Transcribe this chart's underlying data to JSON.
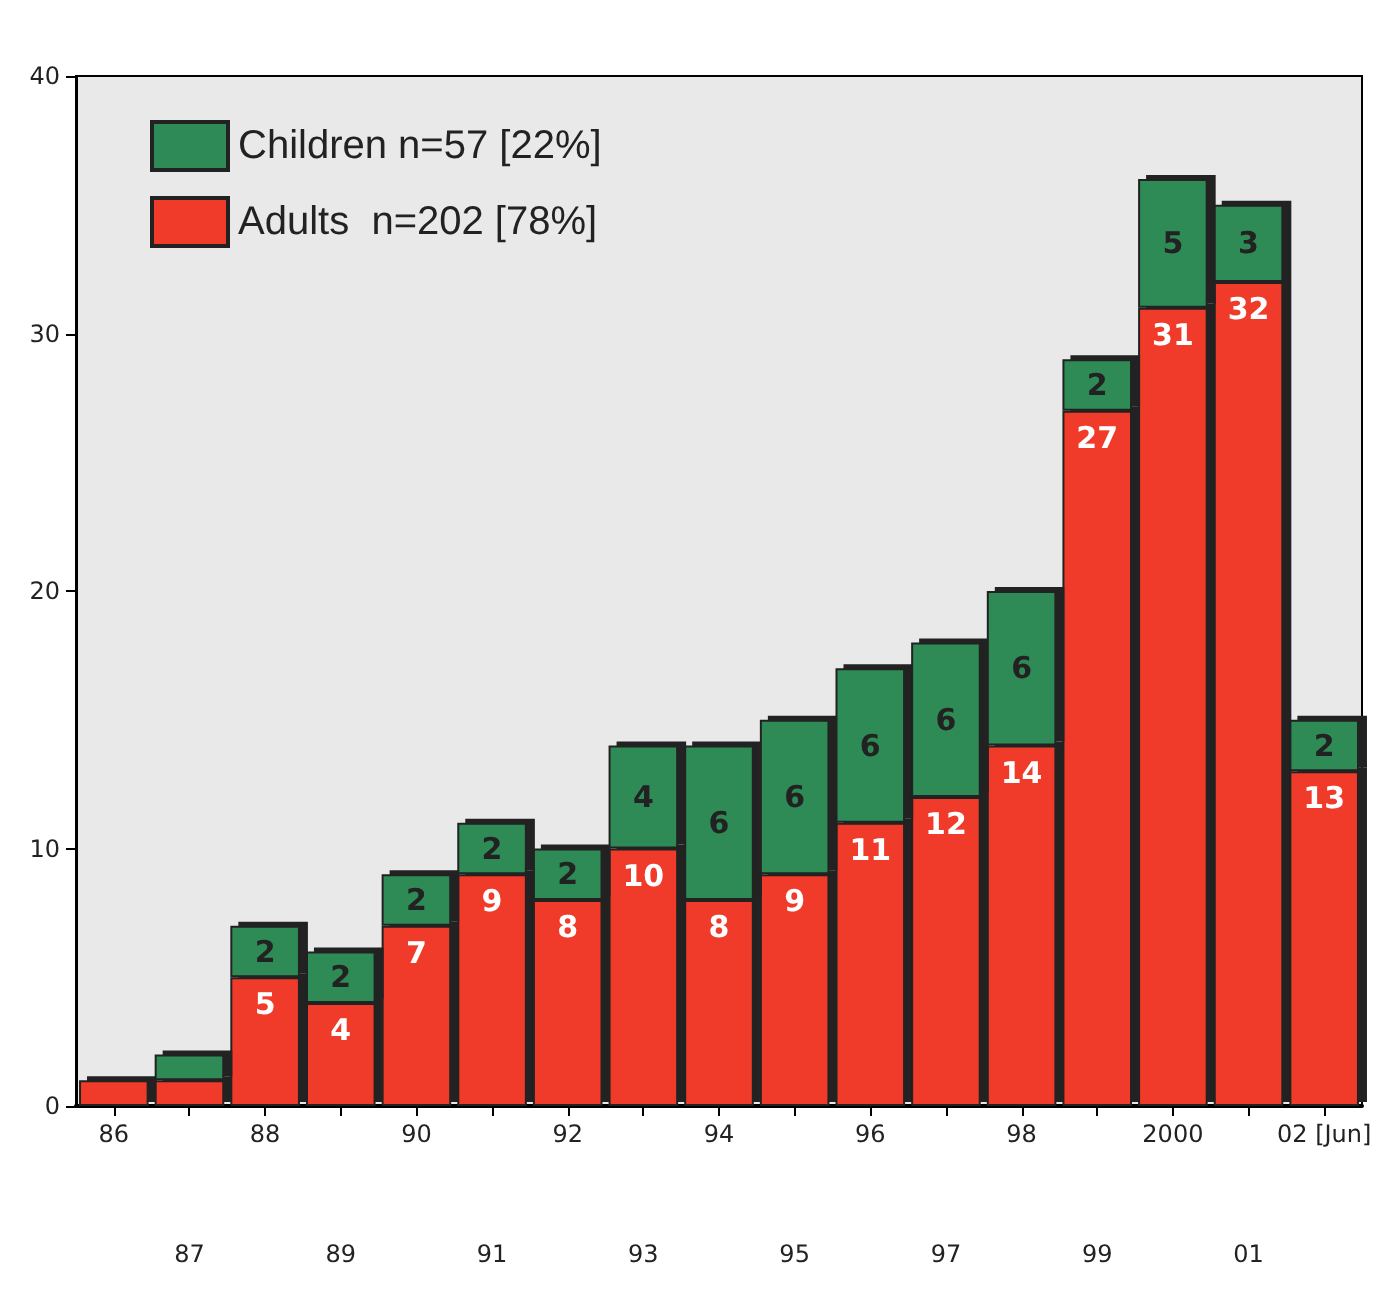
{
  "chart_data": {
    "type": "bar",
    "stacked": true,
    "categories": [
      "86",
      "87",
      "88",
      "89",
      "90",
      "91",
      "92",
      "93",
      "94",
      "95",
      "96",
      "97",
      "98",
      "99",
      "2000",
      "01",
      "02 [Jun]"
    ],
    "series": [
      {
        "name": "Adults  n=202 [78%]",
        "color": "#f03a2a",
        "values": [
          1,
          1,
          5,
          4,
          7,
          9,
          8,
          10,
          8,
          9,
          11,
          12,
          14,
          27,
          31,
          32,
          13
        ],
        "value_labels": [
          null,
          null,
          "5",
          "4",
          "7",
          "9",
          "8",
          "10",
          "8",
          "9",
          "11",
          "12",
          "14",
          "27",
          "31",
          "32",
          "13"
        ]
      },
      {
        "name": "Children n=57 [22%]",
        "color": "#2e8b57",
        "values": [
          0,
          1,
          2,
          2,
          2,
          2,
          2,
          4,
          6,
          6,
          6,
          6,
          6,
          2,
          5,
          3,
          2
        ],
        "value_labels": [
          null,
          null,
          "2",
          "2",
          "2",
          "2",
          "2",
          "4",
          "6",
          "6",
          "6",
          "6",
          "6",
          "2",
          "5",
          "3",
          "2"
        ]
      }
    ],
    "ylim": [
      0,
      40
    ],
    "yticks": [
      0,
      10,
      20,
      30,
      40
    ],
    "grid": false,
    "legend": "top left"
  }
}
